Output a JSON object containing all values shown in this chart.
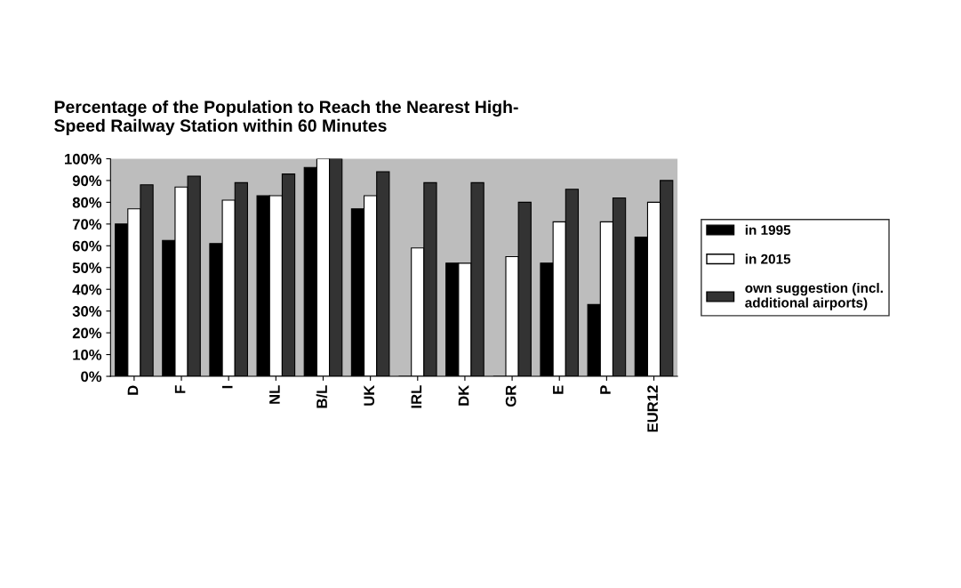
{
  "chart_data": {
    "type": "bar",
    "title": "Percentage of the Population to Reach the Nearest High-\nSpeed Railway Station within 60 Minutes",
    "categories": [
      "D",
      "F",
      "I",
      "NL",
      "B/L",
      "UK",
      "IRL",
      "DK",
      "GR",
      "E",
      "P",
      "EUR12"
    ],
    "series": [
      {
        "name": "in 1995",
        "color": "#000000",
        "values": [
          70,
          62.5,
          61,
          83,
          96,
          77,
          0,
          52,
          0,
          52,
          33,
          64
        ]
      },
      {
        "name": "in 2015",
        "color": "#ffffff",
        "values": [
          77,
          87,
          81,
          83,
          100,
          83,
          59,
          52,
          55,
          71,
          71,
          80
        ]
      },
      {
        "name": "own suggestion (incl.\nadditional airports)",
        "color": "#333333",
        "values": [
          88,
          92,
          89,
          93,
          100,
          94,
          89,
          89,
          80,
          86,
          82,
          90
        ]
      }
    ],
    "ylim": [
      0,
      100
    ],
    "yticks": [
      {
        "value": 0,
        "label": "0%"
      },
      {
        "value": 10,
        "label": "10%"
      },
      {
        "value": 20,
        "label": "20%"
      },
      {
        "value": 30,
        "label": "30%"
      },
      {
        "value": 40,
        "label": "40%"
      },
      {
        "value": 50,
        "label": "50%"
      },
      {
        "value": 60,
        "label": "60%"
      },
      {
        "value": 70,
        "label": "70%"
      },
      {
        "value": 80,
        "label": "80%"
      },
      {
        "value": 90,
        "label": "90%"
      },
      {
        "value": 100,
        "label": "100%"
      }
    ],
    "legend": "right"
  }
}
